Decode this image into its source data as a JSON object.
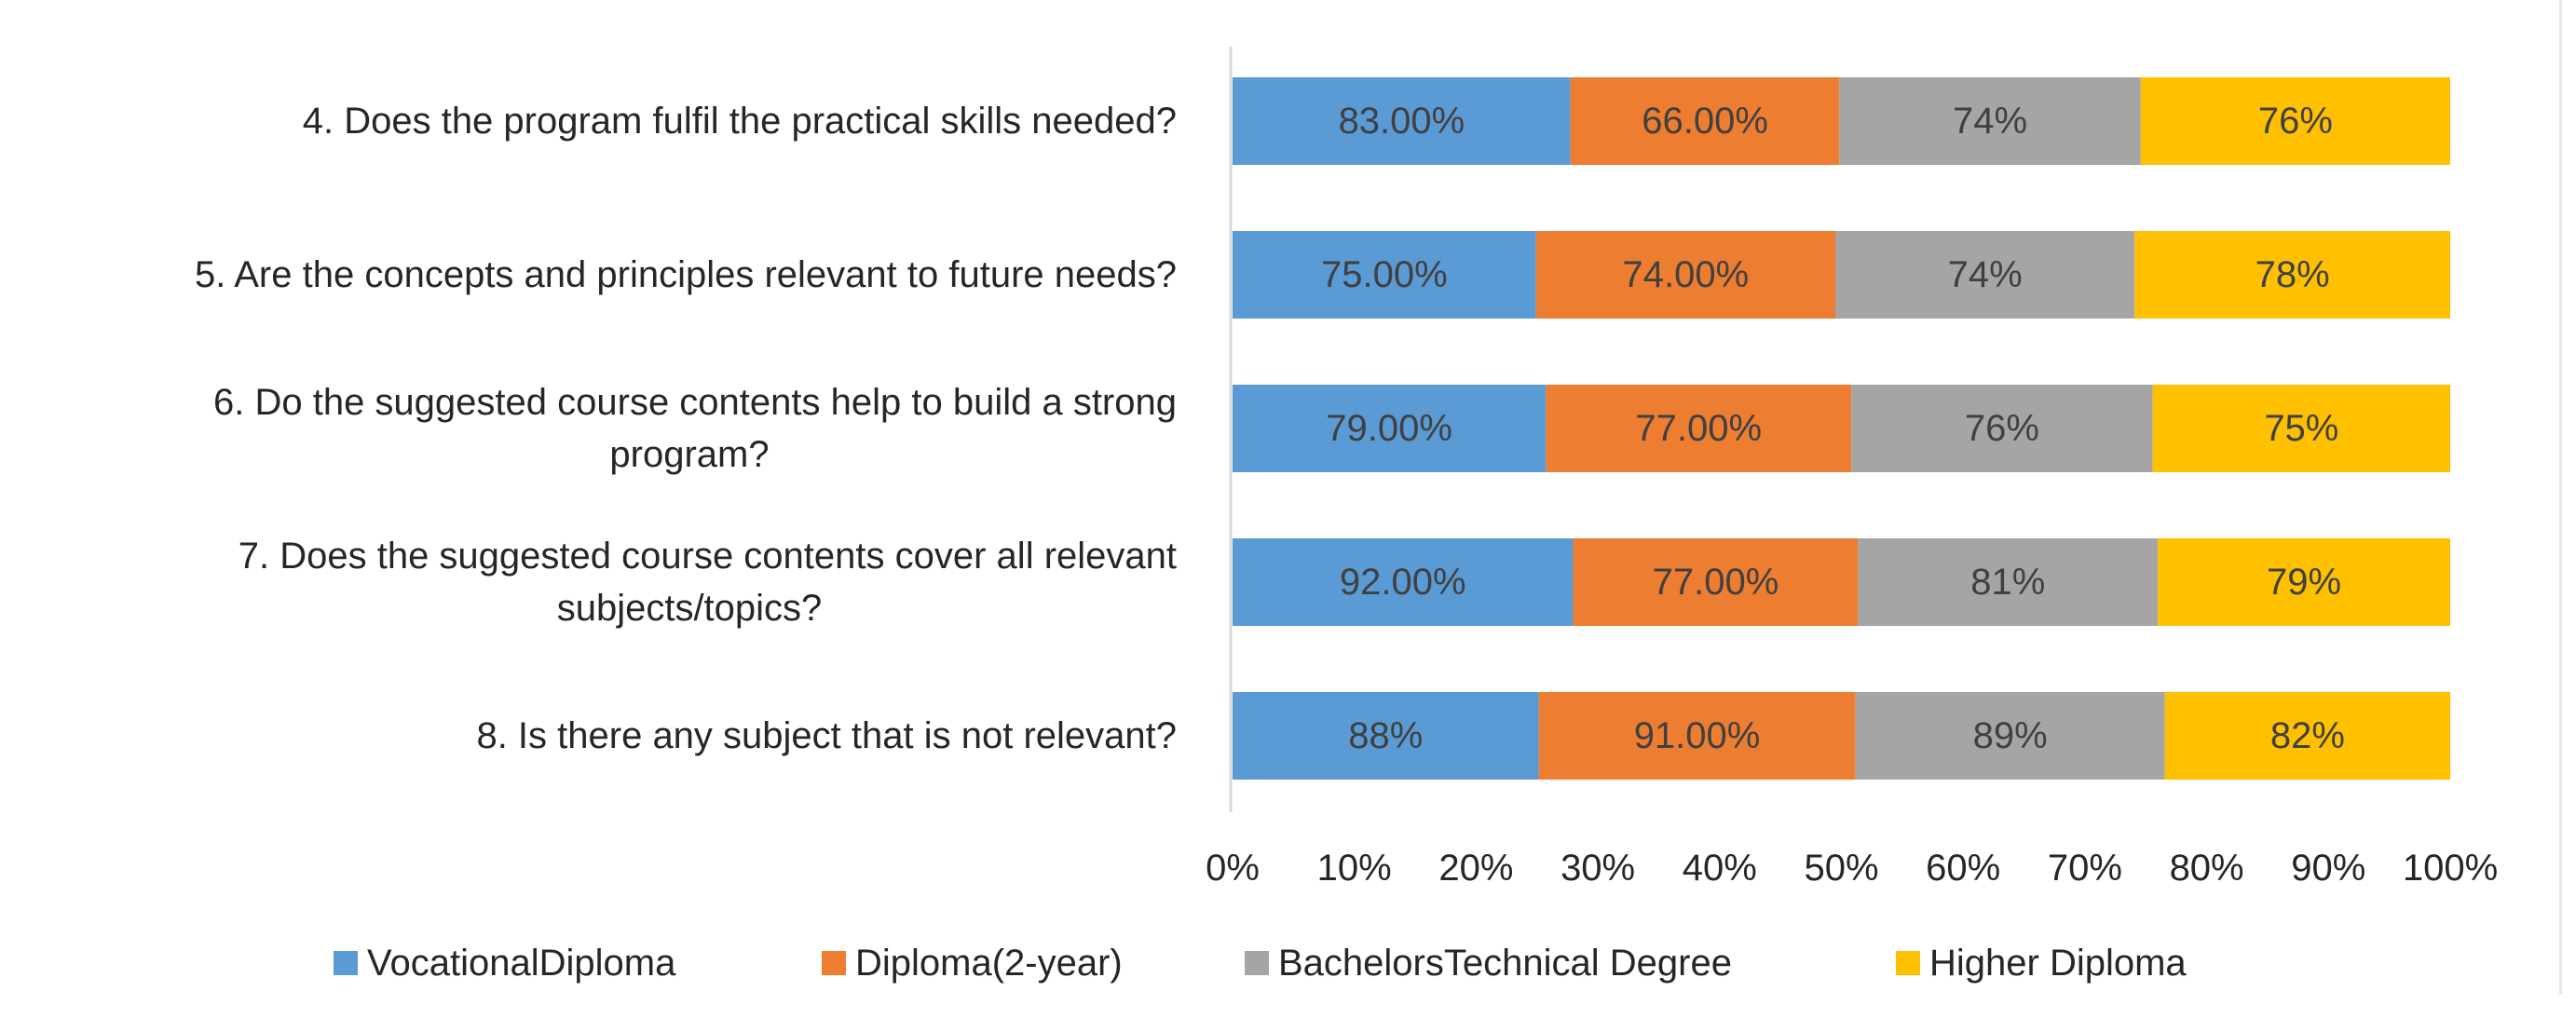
{
  "chart_data": {
    "type": "bar",
    "orientation": "horizontal",
    "stacked": "percent",
    "categories": [
      "4. Does the program fulfil the practical skills needed?",
      "5. Are the concepts and principles relevant to future needs?",
      "6. Do the suggested course contents help to build a strong program?",
      "7. Does the suggested course contents cover all relevant subjects/topics?",
      "8. Is there any subject that is not relevant?"
    ],
    "category_lines": [
      [
        "4. Does the program fulfil the practical skills needed?"
      ],
      [
        "5. Are the concepts and principles relevant to future needs?"
      ],
      [
        "6. Do the suggested course contents help to build a strong",
        "program?"
      ],
      [
        "7. Does the suggested course contents cover all relevant",
        "subjects/topics?"
      ],
      [
        "8. Is there any subject that is not relevant?"
      ]
    ],
    "series": [
      {
        "name": "VocationalDiploma",
        "color": "#5B9BD5",
        "values": [
          83,
          75,
          79,
          92,
          88
        ],
        "labels": [
          "83.00%",
          "75.00%",
          "79.00%",
          "92.00%",
          "88%"
        ]
      },
      {
        "name": "Diploma(2-year)",
        "color": "#ED7D31",
        "values": [
          66,
          74,
          77,
          77,
          91
        ],
        "labels": [
          "66.00%",
          "74.00%",
          "77.00%",
          "77.00%",
          "91.00%"
        ]
      },
      {
        "name": "BachelorsTechnical Degree",
        "color": "#A5A5A5",
        "values": [
          74,
          74,
          76,
          81,
          89
        ],
        "labels": [
          "74%",
          "74%",
          "76%",
          "81%",
          "89%"
        ]
      },
      {
        "name": "Higher Diploma",
        "color": "#FFC000",
        "values": [
          76,
          78,
          75,
          79,
          82
        ],
        "labels": [
          "76%",
          "78%",
          "75%",
          "79%",
          "82%"
        ]
      }
    ],
    "xlim": [
      0,
      100
    ],
    "x_ticks": [
      "0%",
      "10%",
      "20%",
      "30%",
      "40%",
      "50%",
      "60%",
      "70%",
      "80%",
      "90%",
      "100%"
    ],
    "title": "",
    "xlabel": "",
    "ylabel": "",
    "grid": false,
    "legend_position": "bottom"
  }
}
